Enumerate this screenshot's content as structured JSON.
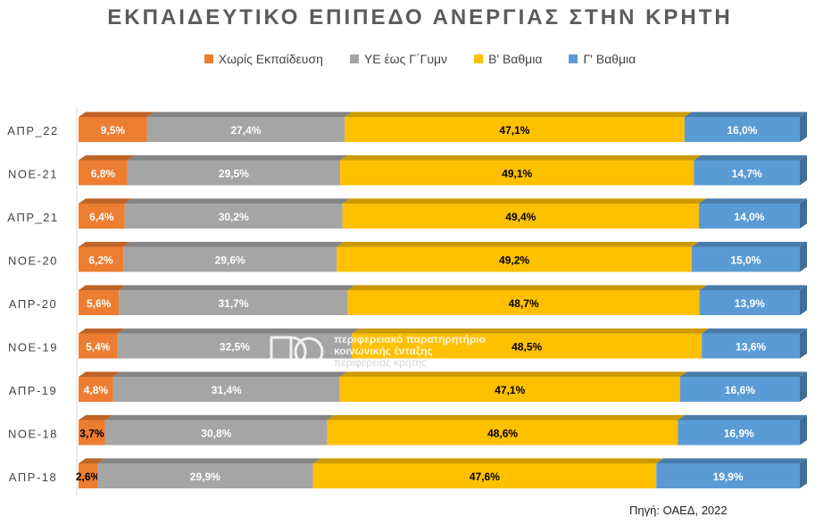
{
  "chart_data": {
    "type": "bar",
    "orientation": "horizontal",
    "stacked": "100%",
    "title": "ΕΚΠΑΙΔΕΥΤΙΚΟ ΕΠΙΠΕΔΟ ΑΝΕΡΓΙΑΣ ΣΤΗΝ ΚΡΗΤΗ",
    "legend_position": "top",
    "grid": false,
    "categories": [
      "ΑΠΡ_22",
      "ΝΟΕ-21",
      "ΑΠΡ_21",
      "ΝΟΕ-20",
      "ΑΠΡ-20",
      "ΝΟΕ-19",
      "ΑΠΡ-19",
      "ΝΟΕ-18",
      "ΑΠΡ-18"
    ],
    "series": [
      {
        "name": "Χωρίς Εκπαίδευση",
        "color": "#ED7D31",
        "values": [
          9.5,
          6.8,
          6.4,
          6.2,
          5.6,
          5.4,
          4.8,
          3.7,
          2.6
        ],
        "labels": [
          "9,5%",
          "6,8%",
          "6,4%",
          "6,2%",
          "5,6%",
          "5,4%",
          "4,8%",
          "3,7%",
          "2,6%"
        ]
      },
      {
        "name": "ΥΕ έως Γ΄Γυμν",
        "color": "#A5A5A5",
        "values": [
          27.4,
          29.5,
          30.2,
          29.6,
          31.7,
          32.5,
          31.4,
          30.8,
          29.9
        ],
        "labels": [
          "27,4%",
          "29,5%",
          "30,2%",
          "29,6%",
          "31,7%",
          "32,5%",
          "31,4%",
          "30,8%",
          "29,9%"
        ]
      },
      {
        "name": "Β' Βαθμια",
        "color": "#FFC000",
        "values": [
          47.1,
          49.1,
          49.4,
          49.2,
          48.7,
          48.5,
          47.1,
          48.6,
          47.6
        ],
        "labels": [
          "47,1%",
          "49,1%",
          "49,4%",
          "49,2%",
          "48,7%",
          "48,5%",
          "47,1%",
          "48,6%",
          "47,6%"
        ]
      },
      {
        "name": "Γ' Βαθμια",
        "color": "#5B9BD5",
        "values": [
          16.0,
          14.7,
          14.0,
          15.0,
          13.9,
          13.6,
          16.6,
          16.9,
          19.9
        ],
        "labels": [
          "16,0%",
          "14,7%",
          "14,0%",
          "15,0%",
          "13,9%",
          "13,6%",
          "16,6%",
          "16,9%",
          "19,9%"
        ]
      }
    ]
  },
  "source": "Πηγή: ΟΑΕΔ, 2022",
  "watermark": {
    "line1": "περιφερειακό παρατηρητήριο",
    "line2": "κοινωνικής ένταξης",
    "line3": "περιφέρειας κρήτης"
  }
}
